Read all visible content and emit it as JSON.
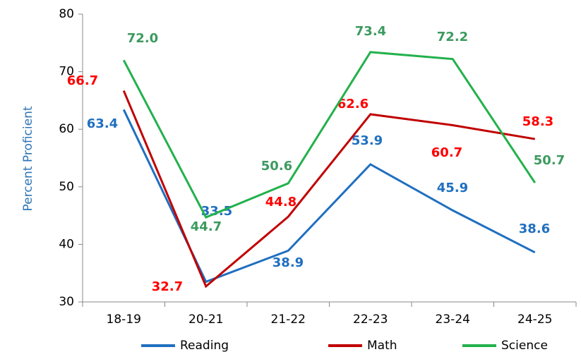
{
  "chart_data": {
    "type": "line",
    "y_label": "Percent Proficient",
    "categories": [
      "18-19",
      "20-21",
      "21-22",
      "22-23",
      "23-24",
      "24-25"
    ],
    "series": [
      {
        "name": "Reading",
        "color": "#1f6fc0",
        "label_color": "#1f6fc0",
        "values": [
          63.4,
          33.5,
          38.9,
          53.9,
          45.9,
          38.6
        ]
      },
      {
        "name": "Math",
        "color": "#c00000",
        "label_color": "#ff0000",
        "values": [
          66.7,
          32.7,
          44.8,
          62.6,
          60.7,
          58.3
        ]
      },
      {
        "name": "Science",
        "color": "#22b14c",
        "label_color": "#3c9a5f",
        "values": [
          72.0,
          44.7,
          50.6,
          73.4,
          72.2,
          50.7
        ],
        "value_labels": [
          "72.0",
          "44.7",
          "50.6",
          "73.4",
          "72.2",
          "50.7"
        ]
      }
    ],
    "ylim": [
      30,
      80
    ],
    "yticks": [
      30,
      40,
      50,
      60,
      70,
      80
    ],
    "legend": "bottom"
  }
}
